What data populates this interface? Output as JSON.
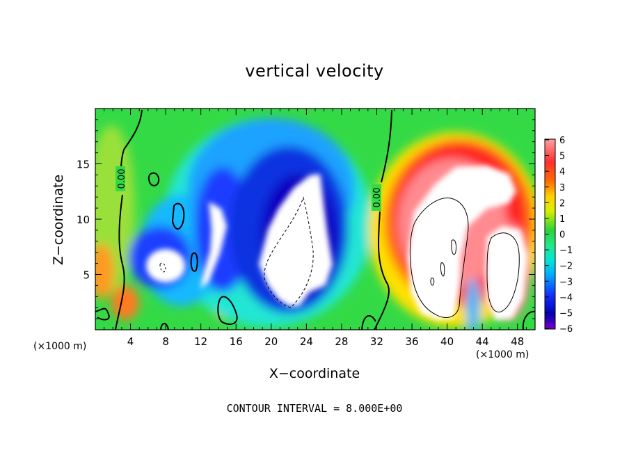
{
  "chart_data": {
    "type": "heatmap",
    "title": "vertical velocity",
    "xlabel": "X−coordinate",
    "ylabel": "Z−coordinate",
    "x_unit_label": "(×1000 m)",
    "x_unit_label_right": "(×1000 m)",
    "xlim": [
      0,
      50
    ],
    "ylim": [
      0,
      20
    ],
    "xticks": [
      4,
      8,
      12,
      16,
      20,
      24,
      28,
      32,
      36,
      40,
      44,
      48
    ],
    "yticks": [
      5,
      10,
      15
    ],
    "colorbar": {
      "min": -6,
      "max": 6,
      "ticks": [
        6,
        5,
        4,
        3,
        2,
        1,
        0,
        -1,
        -2,
        -3,
        -4,
        -5,
        -6
      ],
      "tick_labels": [
        "6",
        "5",
        "4",
        "3",
        "2",
        "1",
        "0",
        "−1",
        "−2",
        "−3",
        "−4",
        "−5",
        "−6"
      ]
    },
    "contour_labels": [
      {
        "text": "0.00",
        "x": 3.2,
        "z": 13.8
      },
      {
        "text": "0.00",
        "x": 32.3,
        "z": 11.8
      }
    ],
    "features": [
      {
        "kind": "updraft",
        "x": 42,
        "z": 8,
        "w": 12
      },
      {
        "kind": "downdraft",
        "x": 24,
        "z": 7,
        "w": -12
      }
    ],
    "contour_interval_text": "CONTOUR INTERVAL = 8.000E+00"
  }
}
